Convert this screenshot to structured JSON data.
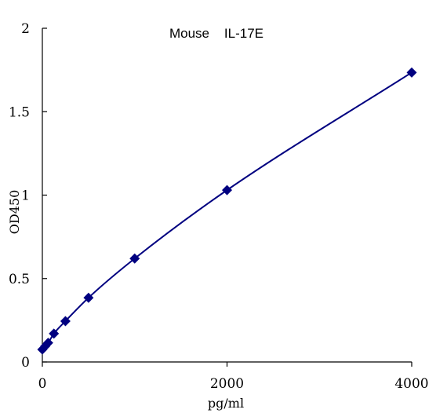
{
  "chart_data": {
    "type": "scatter",
    "title": "Mouse    IL-17E",
    "xlabel": "pg/ml",
    "ylabel": "OD450",
    "xlim": [
      0,
      4000
    ],
    "ylim": [
      0,
      2
    ],
    "x_ticks": [
      0,
      2000,
      4000
    ],
    "x_tick_labels": [
      "0",
      "2000",
      "4000"
    ],
    "y_ticks": [
      0,
      0.5,
      1,
      1.5,
      2
    ],
    "y_tick_labels": [
      "0",
      "0.5",
      "1",
      "1.5",
      "2"
    ],
    "grid": false,
    "legend": "none",
    "marker": "diamond",
    "line": "smooth fit curve",
    "colors": {
      "series": "#000080",
      "axis": "#000000"
    },
    "series": [
      {
        "x": [
          0,
          31.25,
          62.5,
          125,
          250,
          500,
          1000,
          2000,
          4000
        ],
        "y": [
          0.075,
          0.095,
          0.115,
          0.17,
          0.245,
          0.385,
          0.62,
          1.03,
          1.735
        ]
      }
    ]
  }
}
